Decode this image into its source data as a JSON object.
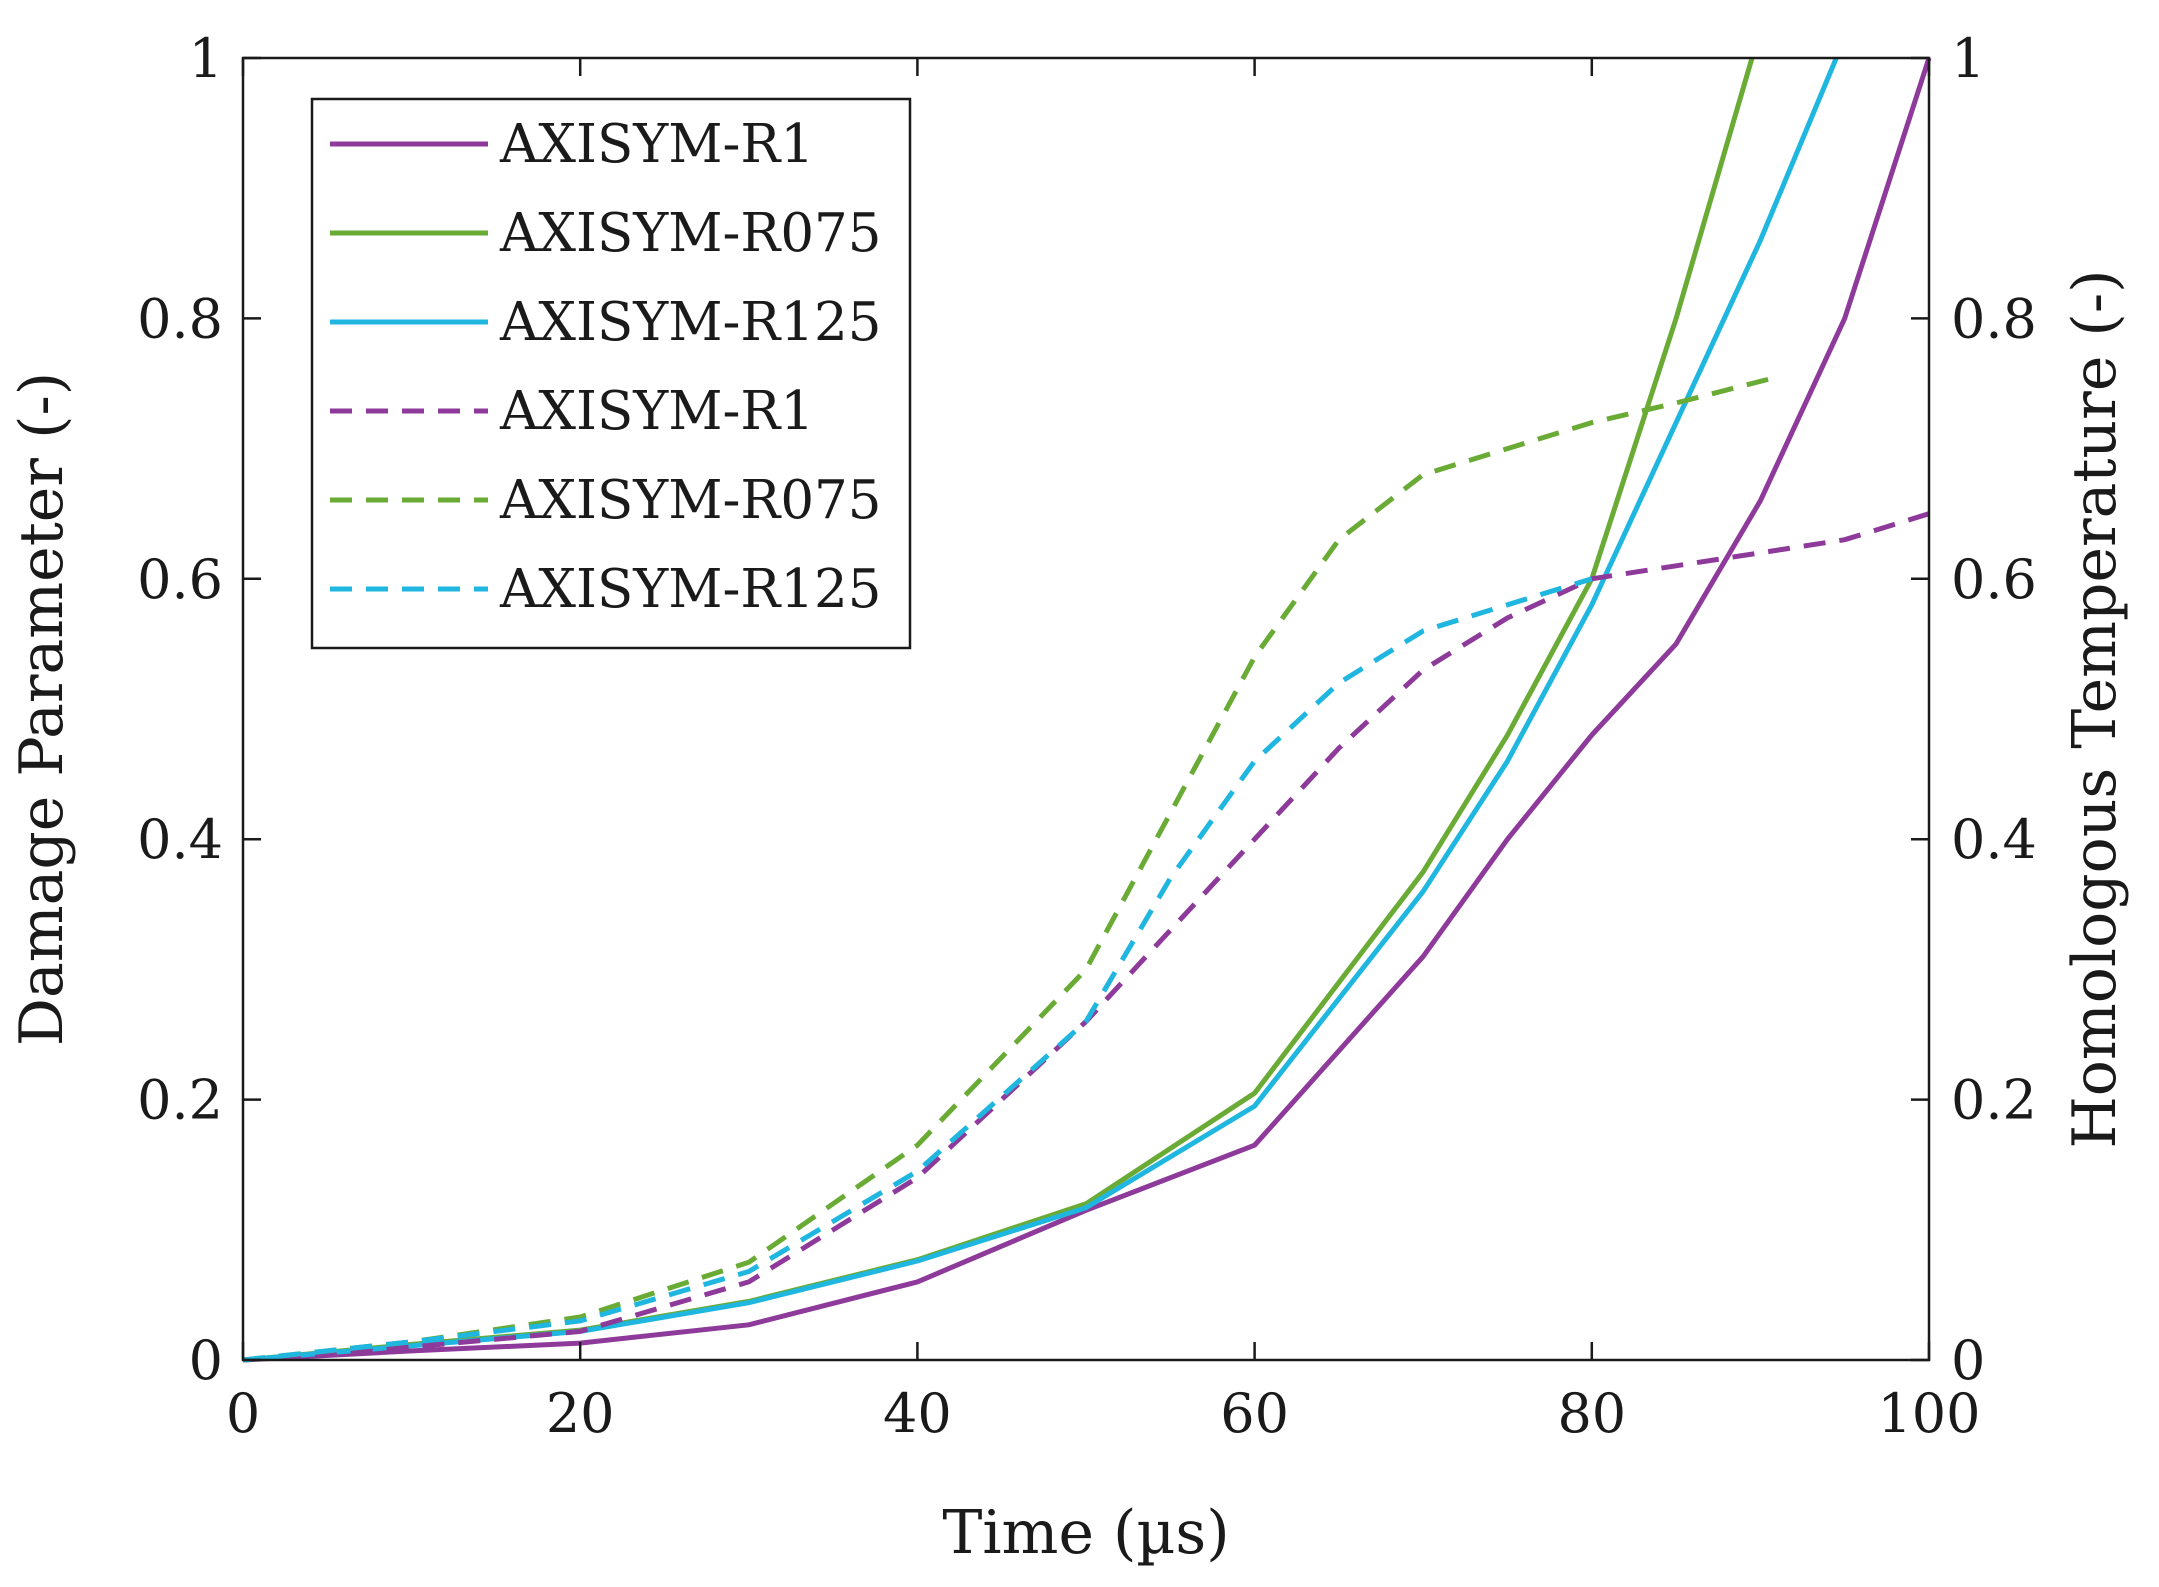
{
  "chart_data": {
    "type": "line",
    "title": "",
    "xlabel": "Time (µs)",
    "ylabel_left": "Damage Parameter (-)",
    "ylabel_right": "Homologous Temperature (-)",
    "xlim": [
      0,
      100
    ],
    "ylim_left": [
      0,
      1
    ],
    "ylim_right": [
      0,
      1
    ],
    "x_ticks": [
      0,
      20,
      40,
      60,
      80,
      100
    ],
    "x_tick_labels": [
      "0",
      "20",
      "40",
      "60",
      "80",
      "100"
    ],
    "y_ticks": [
      0,
      0.2,
      0.4,
      0.6,
      0.8,
      1
    ],
    "y_tick_labels_left": [
      "0",
      "0.2",
      "0.4",
      "0.6",
      "0.8",
      "1"
    ],
    "y_tick_labels_right": [
      "0",
      "0.2",
      "0.4",
      "0.6",
      "0.8",
      "1"
    ],
    "grid": false,
    "legend_position": "top-left",
    "series": [
      {
        "name": "AXISYM-R1",
        "axis": "left",
        "style": "solid",
        "color": "#8e3a9a",
        "x": [
          0,
          10,
          20,
          30,
          40,
          50,
          60,
          70,
          75,
          80,
          85,
          90,
          95,
          100
        ],
        "y": [
          0,
          0.007,
          0.013,
          0.027,
          0.06,
          0.115,
          0.165,
          0.31,
          0.4,
          0.48,
          0.55,
          0.66,
          0.8,
          1.0
        ]
      },
      {
        "name": "AXISYM-R075",
        "axis": "left",
        "style": "solid",
        "color": "#6aab35",
        "x": [
          0,
          10,
          20,
          30,
          40,
          50,
          60,
          70,
          75,
          80,
          85,
          89.5
        ],
        "y": [
          0,
          0.012,
          0.023,
          0.045,
          0.077,
          0.12,
          0.205,
          0.375,
          0.48,
          0.6,
          0.8,
          1.0
        ]
      },
      {
        "name": "AXISYM-R125",
        "axis": "left",
        "style": "solid",
        "color": "#1fb6e0",
        "x": [
          0,
          10,
          20,
          30,
          40,
          50,
          60,
          70,
          75,
          80,
          85,
          90,
          94.5
        ],
        "y": [
          0,
          0.011,
          0.022,
          0.044,
          0.076,
          0.117,
          0.195,
          0.36,
          0.46,
          0.58,
          0.72,
          0.86,
          1.0
        ]
      },
      {
        "name": "AXISYM-R1",
        "axis": "right",
        "style": "dashed",
        "color": "#8e3a9a",
        "x": [
          0,
          10,
          20,
          30,
          40,
          50,
          55,
          60,
          65,
          70,
          75,
          80,
          85,
          90,
          95,
          100
        ],
        "y": [
          0,
          0.01,
          0.022,
          0.06,
          0.14,
          0.26,
          0.33,
          0.4,
          0.47,
          0.53,
          0.57,
          0.6,
          0.61,
          0.62,
          0.63,
          0.65
        ]
      },
      {
        "name": "AXISYM-R075",
        "axis": "right",
        "style": "dashed",
        "color": "#6aab35",
        "x": [
          0,
          10,
          20,
          30,
          40,
          50,
          55,
          60,
          65,
          70,
          75,
          80,
          85,
          91
        ],
        "y": [
          0,
          0.014,
          0.033,
          0.075,
          0.165,
          0.3,
          0.42,
          0.54,
          0.63,
          0.68,
          0.7,
          0.72,
          0.735,
          0.755
        ]
      },
      {
        "name": "AXISYM-R125",
        "axis": "right",
        "style": "dashed",
        "color": "#1fb6e0",
        "x": [
          0,
          10,
          20,
          30,
          40,
          50,
          55,
          60,
          65,
          70,
          75,
          80
        ],
        "y": [
          0,
          0.014,
          0.03,
          0.068,
          0.145,
          0.26,
          0.37,
          0.46,
          0.52,
          0.56,
          0.58,
          0.6
        ]
      }
    ]
  }
}
